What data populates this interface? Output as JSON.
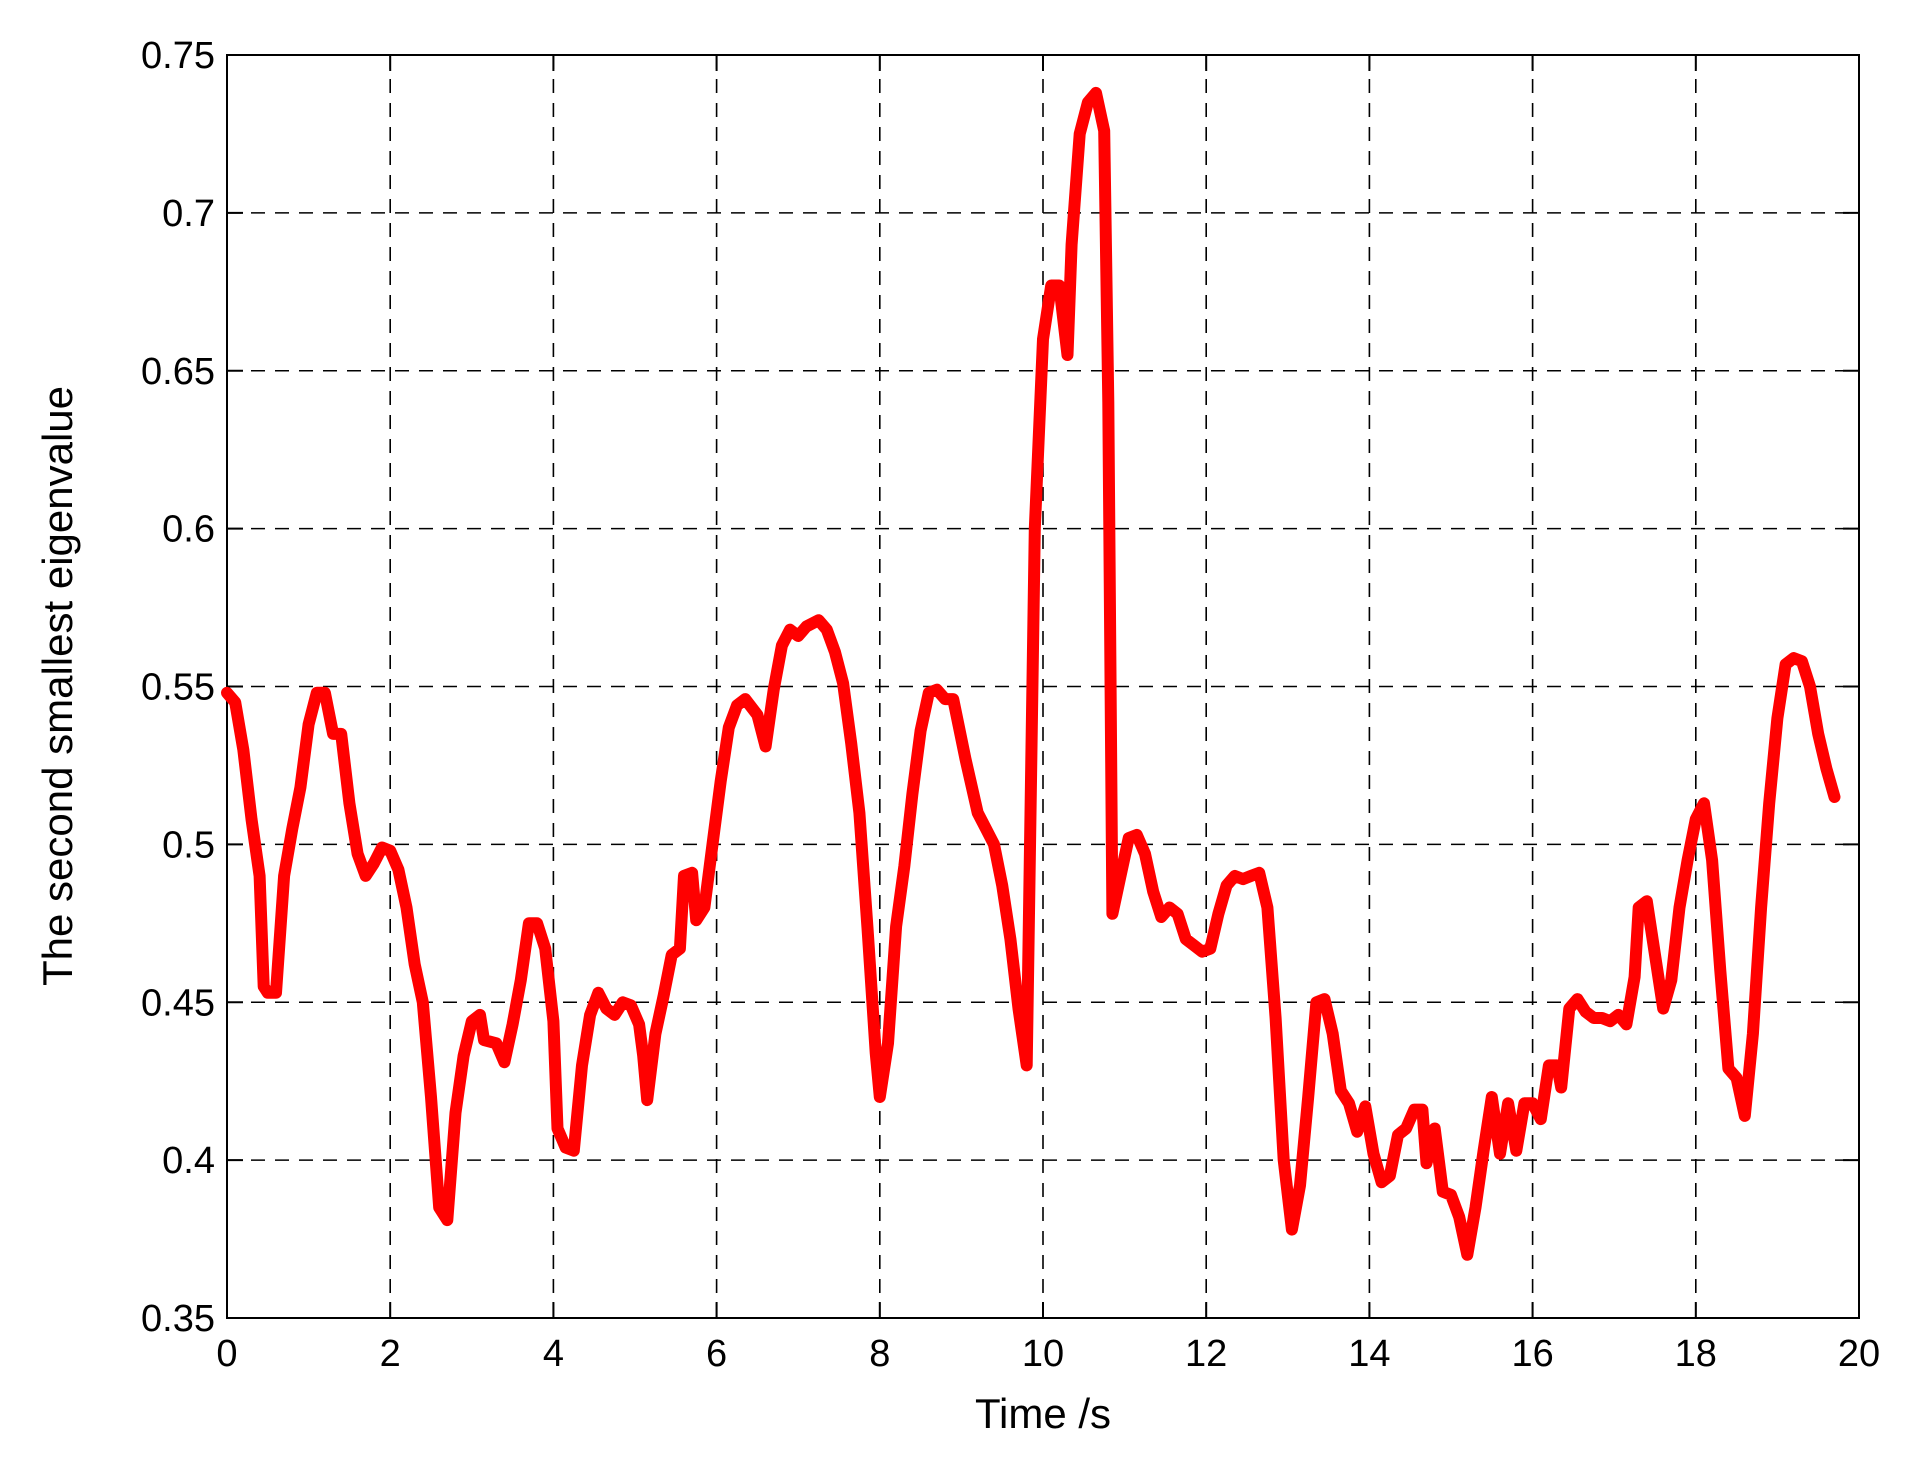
{
  "chart_data": {
    "type": "line",
    "title": "",
    "xlabel": "Time /s",
    "ylabel": "The second smallest eigenvalue",
    "xlim": [
      0,
      20
    ],
    "ylim": [
      0.35,
      0.75
    ],
    "xticks": [
      0,
      2,
      4,
      6,
      8,
      10,
      12,
      14,
      16,
      18,
      20
    ],
    "yticks": [
      0.35,
      0.4,
      0.45,
      0.5,
      0.55,
      0.6,
      0.65,
      0.7,
      0.75
    ],
    "xtick_labels": [
      "0",
      "2",
      "4",
      "6",
      "8",
      "10",
      "12",
      "14",
      "16",
      "18",
      "20"
    ],
    "ytick_labels": [
      "0.35",
      "0.4",
      "0.45",
      "0.5",
      "0.55",
      "0.6",
      "0.65",
      "0.7",
      "0.75"
    ],
    "grid": true,
    "line_color": "#ff0000",
    "series": [
      {
        "points": [
          [
            0.0,
            0.548
          ],
          [
            0.1,
            0.545
          ],
          [
            0.2,
            0.53
          ],
          [
            0.3,
            0.508
          ],
          [
            0.4,
            0.49
          ],
          [
            0.45,
            0.455
          ],
          [
            0.5,
            0.453
          ],
          [
            0.6,
            0.453
          ],
          [
            0.7,
            0.49
          ],
          [
            0.8,
            0.505
          ],
          [
            0.9,
            0.518
          ],
          [
            1.0,
            0.538
          ],
          [
            1.1,
            0.548
          ],
          [
            1.2,
            0.548
          ],
          [
            1.3,
            0.535
          ],
          [
            1.4,
            0.535
          ],
          [
            1.5,
            0.513
          ],
          [
            1.6,
            0.497
          ],
          [
            1.7,
            0.49
          ],
          [
            1.8,
            0.494
          ],
          [
            1.9,
            0.499
          ],
          [
            2.0,
            0.498
          ],
          [
            2.1,
            0.492
          ],
          [
            2.2,
            0.48
          ],
          [
            2.3,
            0.462
          ],
          [
            2.4,
            0.45
          ],
          [
            2.5,
            0.42
          ],
          [
            2.6,
            0.385
          ],
          [
            2.7,
            0.381
          ],
          [
            2.8,
            0.415
          ],
          [
            2.9,
            0.433
          ],
          [
            3.0,
            0.444
          ],
          [
            3.1,
            0.446
          ],
          [
            3.15,
            0.438
          ],
          [
            3.3,
            0.437
          ],
          [
            3.4,
            0.431
          ],
          [
            3.5,
            0.443
          ],
          [
            3.6,
            0.457
          ],
          [
            3.7,
            0.475
          ],
          [
            3.8,
            0.475
          ],
          [
            3.9,
            0.467
          ],
          [
            4.0,
            0.444
          ],
          [
            4.05,
            0.41
          ],
          [
            4.15,
            0.404
          ],
          [
            4.25,
            0.403
          ],
          [
            4.35,
            0.43
          ],
          [
            4.45,
            0.446
          ],
          [
            4.55,
            0.453
          ],
          [
            4.65,
            0.448
          ],
          [
            4.75,
            0.446
          ],
          [
            4.85,
            0.45
          ],
          [
            4.95,
            0.449
          ],
          [
            5.05,
            0.443
          ],
          [
            5.1,
            0.433
          ],
          [
            5.15,
            0.419
          ],
          [
            5.25,
            0.44
          ],
          [
            5.35,
            0.452
          ],
          [
            5.45,
            0.465
          ],
          [
            5.55,
            0.467
          ],
          [
            5.6,
            0.49
          ],
          [
            5.7,
            0.491
          ],
          [
            5.75,
            0.476
          ],
          [
            5.85,
            0.48
          ],
          [
            5.95,
            0.5
          ],
          [
            6.05,
            0.52
          ],
          [
            6.15,
            0.537
          ],
          [
            6.25,
            0.544
          ],
          [
            6.35,
            0.546
          ],
          [
            6.5,
            0.541
          ],
          [
            6.6,
            0.531
          ],
          [
            6.7,
            0.549
          ],
          [
            6.8,
            0.563
          ],
          [
            6.9,
            0.568
          ],
          [
            7.0,
            0.566
          ],
          [
            7.1,
            0.569
          ],
          [
            7.25,
            0.571
          ],
          [
            7.35,
            0.568
          ],
          [
            7.45,
            0.561
          ],
          [
            7.55,
            0.551
          ],
          [
            7.65,
            0.532
          ],
          [
            7.75,
            0.51
          ],
          [
            7.85,
            0.473
          ],
          [
            7.95,
            0.434
          ],
          [
            8.0,
            0.42
          ],
          [
            8.1,
            0.437
          ],
          [
            8.2,
            0.474
          ],
          [
            8.3,
            0.493
          ],
          [
            8.4,
            0.516
          ],
          [
            8.5,
            0.536
          ],
          [
            8.6,
            0.548
          ],
          [
            8.7,
            0.549
          ],
          [
            8.8,
            0.546
          ],
          [
            8.9,
            0.546
          ],
          [
            9.05,
            0.527
          ],
          [
            9.2,
            0.51
          ],
          [
            9.3,
            0.505
          ],
          [
            9.4,
            0.5
          ],
          [
            9.5,
            0.487
          ],
          [
            9.6,
            0.47
          ],
          [
            9.7,
            0.448
          ],
          [
            9.8,
            0.43
          ],
          [
            9.9,
            0.6
          ],
          [
            10.0,
            0.66
          ],
          [
            10.1,
            0.677
          ],
          [
            10.2,
            0.677
          ],
          [
            10.3,
            0.655
          ],
          [
            10.35,
            0.69
          ],
          [
            10.45,
            0.725
          ],
          [
            10.55,
            0.735
          ],
          [
            10.65,
            0.738
          ],
          [
            10.75,
            0.726
          ],
          [
            10.8,
            0.64
          ],
          [
            10.85,
            0.478
          ],
          [
            10.95,
            0.49
          ],
          [
            11.05,
            0.502
          ],
          [
            11.15,
            0.503
          ],
          [
            11.25,
            0.497
          ],
          [
            11.35,
            0.485
          ],
          [
            11.45,
            0.477
          ],
          [
            11.55,
            0.48
          ],
          [
            11.65,
            0.478
          ],
          [
            11.75,
            0.47
          ],
          [
            11.85,
            0.468
          ],
          [
            11.95,
            0.466
          ],
          [
            12.05,
            0.467
          ],
          [
            12.15,
            0.478
          ],
          [
            12.25,
            0.487
          ],
          [
            12.35,
            0.49
          ],
          [
            12.45,
            0.489
          ],
          [
            12.55,
            0.49
          ],
          [
            12.65,
            0.491
          ],
          [
            12.75,
            0.48
          ],
          [
            12.85,
            0.445
          ],
          [
            12.95,
            0.4
          ],
          [
            13.05,
            0.378
          ],
          [
            13.15,
            0.392
          ],
          [
            13.25,
            0.42
          ],
          [
            13.35,
            0.45
          ],
          [
            13.45,
            0.451
          ],
          [
            13.55,
            0.44
          ],
          [
            13.65,
            0.422
          ],
          [
            13.75,
            0.418
          ],
          [
            13.85,
            0.409
          ],
          [
            13.95,
            0.417
          ],
          [
            14.05,
            0.402
          ],
          [
            14.15,
            0.393
          ],
          [
            14.25,
            0.395
          ],
          [
            14.35,
            0.408
          ],
          [
            14.45,
            0.41
          ],
          [
            14.55,
            0.416
          ],
          [
            14.65,
            0.416
          ],
          [
            14.7,
            0.399
          ],
          [
            14.8,
            0.41
          ],
          [
            14.9,
            0.39
          ],
          [
            15.0,
            0.389
          ],
          [
            15.1,
            0.382
          ],
          [
            15.2,
            0.37
          ],
          [
            15.3,
            0.385
          ],
          [
            15.4,
            0.403
          ],
          [
            15.5,
            0.42
          ],
          [
            15.6,
            0.402
          ],
          [
            15.7,
            0.418
          ],
          [
            15.8,
            0.403
          ],
          [
            15.9,
            0.418
          ],
          [
            16.0,
            0.418
          ],
          [
            16.1,
            0.413
          ],
          [
            16.2,
            0.43
          ],
          [
            16.3,
            0.43
          ],
          [
            16.35,
            0.423
          ],
          [
            16.45,
            0.448
          ],
          [
            16.55,
            0.451
          ],
          [
            16.65,
            0.447
          ],
          [
            16.75,
            0.445
          ],
          [
            16.85,
            0.445
          ],
          [
            16.95,
            0.444
          ],
          [
            17.05,
            0.446
          ],
          [
            17.15,
            0.443
          ],
          [
            17.25,
            0.458
          ],
          [
            17.3,
            0.48
          ],
          [
            17.4,
            0.482
          ],
          [
            17.5,
            0.465
          ],
          [
            17.6,
            0.448
          ],
          [
            17.7,
            0.457
          ],
          [
            17.8,
            0.48
          ],
          [
            17.9,
            0.495
          ],
          [
            18.0,
            0.508
          ],
          [
            18.1,
            0.513
          ],
          [
            18.2,
            0.495
          ],
          [
            18.3,
            0.46
          ],
          [
            18.4,
            0.429
          ],
          [
            18.5,
            0.426
          ],
          [
            18.6,
            0.414
          ],
          [
            18.7,
            0.44
          ],
          [
            18.8,
            0.48
          ],
          [
            18.9,
            0.513
          ],
          [
            19.0,
            0.54
          ],
          [
            19.1,
            0.557
          ],
          [
            19.2,
            0.559
          ],
          [
            19.3,
            0.558
          ],
          [
            19.4,
            0.55
          ],
          [
            19.5,
            0.535
          ],
          [
            19.6,
            0.524
          ],
          [
            19.7,
            0.515
          ]
        ]
      }
    ]
  }
}
